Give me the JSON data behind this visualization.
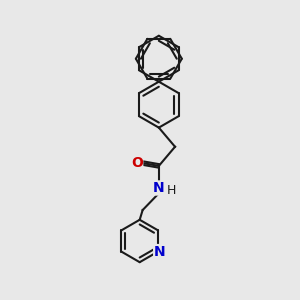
{
  "background_color": "#e8e8e8",
  "bond_color": "#1a1a1a",
  "nitrogen_color": "#0000cc",
  "oxygen_color": "#cc0000",
  "line_width": 1.5,
  "font_size": 8.5,
  "figsize": [
    3.0,
    3.0
  ],
  "dpi": 100,
  "xlim": [
    0,
    10
  ],
  "ylim": [
    0,
    10
  ]
}
